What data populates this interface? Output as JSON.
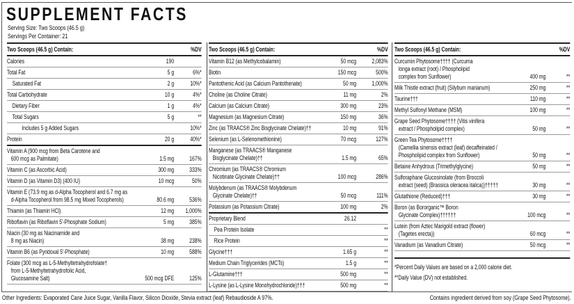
{
  "title": "SUPPLEMENT FACTS",
  "serving_size": "Serving Size: Two Scoops (46.5 g)",
  "servings_per_container": "Servings Per Container: 21",
  "columns": [
    {
      "header": "Two Scoops (46.5 g) Contain:",
      "dv_header": "%DV",
      "rows": [
        {
          "name": "Calories",
          "amount": "190",
          "dv": "",
          "indent": 0
        },
        {
          "name": "Total Fat",
          "amount": "5 g",
          "dv": "6%*",
          "indent": 0
        },
        {
          "name": "Saturated Fat",
          "amount": "2 g",
          "dv": "10%*",
          "indent": 1
        },
        {
          "name": "Total Carbohydrate",
          "amount": "10 g",
          "dv": "4%*",
          "indent": 0
        },
        {
          "name": "Dietary Fiber",
          "amount": "1 g",
          "dv": "4%*",
          "indent": 1
        },
        {
          "name": "Total Sugars",
          "amount": "5 g",
          "dv": "**",
          "indent": 1
        },
        {
          "name": "Includes 5 g Added Sugars",
          "amount": "",
          "dv": "10%*",
          "indent": 2
        },
        {
          "name": "Protein",
          "amount": "20 g",
          "dv": "40%*",
          "indent": 0,
          "thick": true
        },
        {
          "name": "Vitamin A (900 mcg from Beta Carotene and\n   600 mcg as Palmitate)",
          "amount": "1.5 mg",
          "dv": "167%",
          "indent": 0
        },
        {
          "name": "Vitamin C (as Ascorbic Acid)",
          "amount": "300 mg",
          "dv": "333%",
          "indent": 0
        },
        {
          "name": "Vitamin D (as Vitamin D3) (400 IU)",
          "amount": "10 mcg",
          "dv": "50%",
          "indent": 0
        },
        {
          "name": "Vitamin E (73.9 mg as d-Alpha Tocopherol and 6.7 mg as\n   d-Alpha Tocopherol from 98.5 mg Mixed Tocopherols)",
          "amount": "80.6 mg",
          "dv": "536%",
          "indent": 0
        },
        {
          "name": "Thiamin (as Thiamin HCl)",
          "amount": "12 mg",
          "dv": "1,000%",
          "indent": 0
        },
        {
          "name": "Riboflavin (as Riboflavin 5'-Phosphate Sodium)",
          "amount": "5 mg",
          "dv": "385%",
          "indent": 0
        },
        {
          "name": "Niacin (30 mg as Niacinamide and\n   8 mg as Niacin)",
          "amount": "38 mg",
          "dv": "238%",
          "indent": 0
        },
        {
          "name": "Vitamin B6 (as Pyridoxal 5'-Phosphate)",
          "amount": "10 mg",
          "dv": "588%",
          "indent": 0
        },
        {
          "name": "Folate (300 mcg as L-5-Methyltetrahydrofolate†\n   from L-5-Methyltetrahydrofolic Acid,\n   Glucosamine Salt)",
          "amount": "500 mcg DFE",
          "dv": "125%",
          "indent": 0
        }
      ]
    },
    {
      "header": "Two Scoops (46.5 g) Contain:",
      "dv_header": "%DV",
      "rows": [
        {
          "name": "Vitamin B12 (as Methylcobalamin)",
          "amount": "50 mcg",
          "dv": "2,083%",
          "indent": 0
        },
        {
          "name": "Biotin",
          "amount": "150 mcg",
          "dv": "500%",
          "indent": 0
        },
        {
          "name": "Pantothenic Acid (as Calcium Pantothenate)",
          "amount": "50 mg",
          "dv": "1,000%",
          "indent": 0
        },
        {
          "name": "Choline (as Choline Citrate)",
          "amount": "11 mg",
          "dv": "2%",
          "indent": 0
        },
        {
          "name": "Calcium (as Calcium Citrate)",
          "amount": "300 mg",
          "dv": "23%",
          "indent": 0
        },
        {
          "name": "Magnesium (as Magnesium Citrate)",
          "amount": "150 mg",
          "dv": "36%",
          "indent": 0
        },
        {
          "name": "Zinc (as TRAACS® Zinc Bisglycinate Chelate)††",
          "amount": "10 mg",
          "dv": "91%",
          "indent": 0
        },
        {
          "name": "Selenium (as L-Selenomethionine)",
          "amount": "70 mcg",
          "dv": "127%",
          "indent": 0
        },
        {
          "name": "Manganese (as TRAACS® Manganese\n   Bisglycinate Chelate)††",
          "amount": "1.5 mg",
          "dv": "65%",
          "indent": 0
        },
        {
          "name": "Chromium (as TRAACS® Chromium\n   Nicotinate Glycinate Chelate)††",
          "amount": "100 mcg",
          "dv": "286%",
          "indent": 0
        },
        {
          "name": "Molybdenum (as TRAACS® Molybdenum\n   Glycinate Chelate)††",
          "amount": "50 mcg",
          "dv": "111%",
          "indent": 0
        },
        {
          "name": "Potassium (as Potassium Citrate)",
          "amount": "100 mg",
          "dv": "2%",
          "indent": 0,
          "thick": true
        },
        {
          "name": "Proprietary Blend",
          "amount": "26.12",
          "dv": "",
          "indent": 0
        },
        {
          "name": "Pea Protein Isolate",
          "amount": "",
          "dv": "**",
          "indent": 1
        },
        {
          "name": "Rice Protein",
          "amount": "",
          "dv": "**",
          "indent": 1
        },
        {
          "name": "Glycine†††",
          "amount": "1.65 g",
          "dv": "**",
          "indent": 0
        },
        {
          "name": "Medium Chain Triglycerides (MCTs)",
          "amount": "1.5 g",
          "dv": "**",
          "indent": 0
        },
        {
          "name": "L-Glutamine†††",
          "amount": "500 mg",
          "dv": "**",
          "indent": 0
        },
        {
          "name": "L-Lysine (as L-Lysine Monohydrochloride)†††",
          "amount": "500 mg",
          "dv": "**",
          "indent": 0
        }
      ]
    },
    {
      "header": "Two Scoops (46.5 g) Contain:",
      "dv_header": "%DV",
      "rows": [
        {
          "name": "Curcumin Phytosome†††† (Curcuma\n   longa extract (root) / Phospholipid\n   complex from Sunflower)",
          "amount": "400 mg",
          "dv": "**",
          "indent": 0
        },
        {
          "name": "Milk Thistle extract (fruit) (Silybum marianum)",
          "amount": "250 mg",
          "dv": "**",
          "indent": 0
        },
        {
          "name": "Taurine†††",
          "amount": "110 mg",
          "dv": "**",
          "indent": 0
        },
        {
          "name": "Methyl Sulfonyl Methane (MSM)",
          "amount": "100 mg",
          "dv": "**",
          "indent": 0
        },
        {
          "name": "Grape Seed Phytosome†††† (Vitis vinifera\n   extract / Phospholipid complex)",
          "amount": "50 mg",
          "dv": "**",
          "indent": 0
        },
        {
          "name": "Green Tea Phytosome††††\n   (Camellia sinensis extract (leaf) decaffeinated /\n   Phospholipid complex from Sunflower)",
          "amount": "50 mg",
          "dv": "**",
          "indent": 0
        },
        {
          "name": "Betaine Anhydrous (Trimethylglycine)",
          "amount": "50 mg",
          "dv": "**",
          "indent": 0
        },
        {
          "name": "Sulforaphane Glucosinolate (from Broccoli\n   extract (seed) (Brassica oleracea italica))†††††",
          "amount": "30 mg",
          "dv": "**",
          "indent": 0
        },
        {
          "name": "Glutathione (Reduced)†††",
          "amount": "30 mg",
          "dv": "**",
          "indent": 0
        },
        {
          "name": "Boron (as Bororganic™ Boron\n   Glycinate Complex)††††††",
          "amount": "100 mcg",
          "dv": "**",
          "indent": 0
        },
        {
          "name": "Lutein (from Aztec Marigold extract (flower)\n   (Tagetes erecta))",
          "amount": "60 mcg",
          "dv": "**",
          "indent": 0
        },
        {
          "name": "Vanadium (as Vanadium Citrate)",
          "amount": "50 mcg",
          "dv": "**",
          "indent": 0
        }
      ],
      "notes": [
        "*Percent Daily Values are based on a 2,000 calorie diet.",
        "**Daily Value (DV) not established."
      ]
    }
  ],
  "other_ingredients": "Other Ingredients: Evaporated Cane Juice Sugar, Vanilla Flavor, Silicon Dioxide, Stevia extract (leaf) Rebaudioside A 97%.",
  "allergen_note": "Contains ingredient derived from soy (Grape Seed Phytosome)."
}
